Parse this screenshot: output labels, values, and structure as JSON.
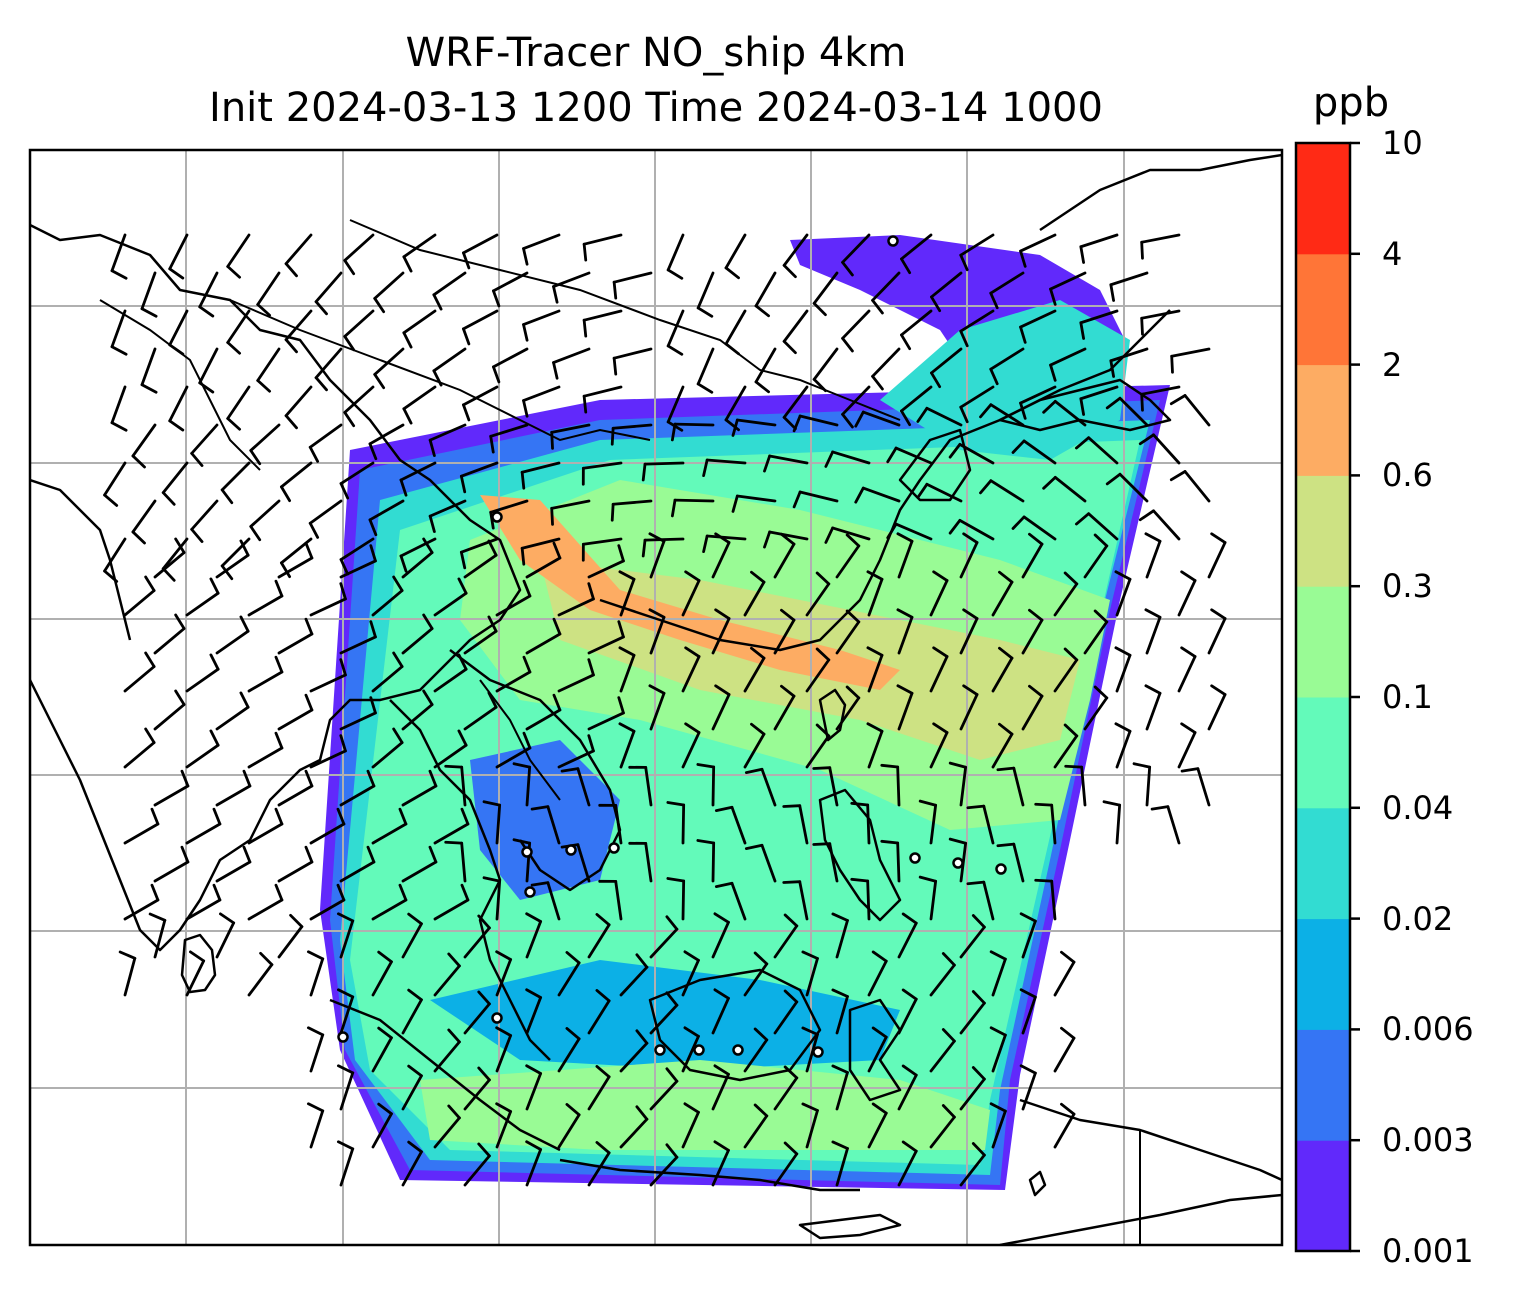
{
  "title": {
    "line1": "WRF-Tracer NO_ship 4km",
    "line2": "Init 2024-03-13 1200 Time 2024-03-14 1000"
  },
  "colorbar": {
    "unit": "ppb",
    "levels": [
      "0.001",
      "0.003",
      "0.006",
      "0.02",
      "0.04",
      "0.1",
      "0.3",
      "0.6",
      "2",
      "4",
      "10"
    ],
    "colors": [
      "#6129fb",
      "#3575f4",
      "#0cb0e6",
      "#32dcd2",
      "#63faba",
      "#99fb95",
      "#cde283",
      "#fdac63",
      "#ff7537",
      "#ff2a15"
    ]
  },
  "map": {
    "gridlines": true,
    "coastline_color": "#000000",
    "wind_barbs": true,
    "station_markers": true
  }
}
